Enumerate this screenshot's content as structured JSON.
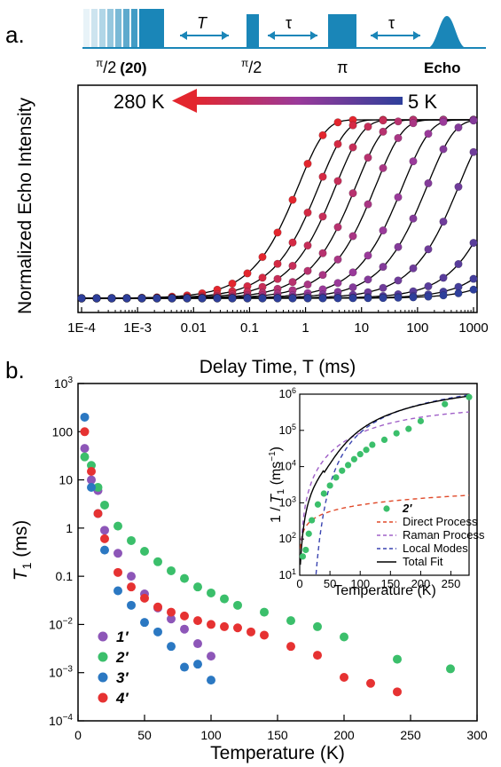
{
  "colors": {
    "pulse": "#1a86b8",
    "hot": "#e3262e",
    "cold": "#2e3f9b",
    "green": "#3bbf6b",
    "purple": "#8d56b8",
    "blue": "#2b78c2",
    "red": "#e63232",
    "direct": "#e04a2a",
    "raman": "#a060c8",
    "local": "#3a44b0",
    "total": "#000000"
  },
  "panel_a": {
    "label": "a.",
    "sequence": {
      "pulse1": "π/2 (20)",
      "pulse1_pre": "π",
      "pulse1_sub": "/2",
      "pulse1_post": "(20)",
      "pulse2_pre": "π",
      "pulse2_sub": "/2",
      "delay1": "T",
      "delay2": "τ",
      "pulse3": "π",
      "delay3": "τ",
      "echo": "Echo"
    },
    "arrow_left": "280 K",
    "arrow_right": "5 K"
  },
  "panel_b": {
    "label": "b."
  },
  "chart_data": [
    {
      "type": "scatter",
      "title": "",
      "xlabel": "Delay Time, T (ms)",
      "ylabel": "Normalized Echo Intensity",
      "xscale": "log",
      "xlim": [
        0.0001,
        1000
      ],
      "xticks": [
        "1E-4",
        "1E-3",
        "0.01",
        "0.1",
        "1",
        "10",
        "100",
        "1000"
      ],
      "yticks": [],
      "fit_lines": "black curves through each series",
      "series_T1_ms": [
        0.75,
        1.75,
        3.5,
        8,
        18,
        55,
        150,
        550,
        3000,
        11000,
        28000
      ]
    },
    {
      "type": "scatter",
      "xlabel": "Temperature (K)",
      "ylabel": "T1 (ms)",
      "yscale": "log",
      "xlim": [
        0,
        300
      ],
      "ylim": [
        0.0001,
        1000
      ],
      "xticks": [
        "0",
        "50",
        "100",
        "150",
        "200",
        "250",
        "300"
      ],
      "yticks": [
        "10-4",
        "10-3",
        "10-2",
        "0.1",
        "1",
        "10",
        "100",
        "103"
      ],
      "legend": "bottom-left",
      "series": [
        {
          "name": "1′",
          "color": "purple",
          "points": [
            [
              5,
              45
            ],
            [
              10,
              10
            ],
            [
              15,
              6
            ],
            [
              20,
              0.9
            ],
            [
              30,
              0.3
            ],
            [
              40,
              0.1
            ],
            [
              50,
              0.043
            ],
            [
              60,
              0.022
            ],
            [
              70,
              0.013
            ],
            [
              80,
              0.008
            ],
            [
              90,
              0.004
            ],
            [
              100,
              0.0022
            ]
          ]
        },
        {
          "name": "2′",
          "color": "green",
          "points": [
            [
              5,
              30
            ],
            [
              10,
              20
            ],
            [
              15,
              7
            ],
            [
              20,
              3
            ],
            [
              30,
              1.1
            ],
            [
              40,
              0.55
            ],
            [
              50,
              0.33
            ],
            [
              60,
              0.2
            ],
            [
              70,
              0.13
            ],
            [
              80,
              0.09
            ],
            [
              90,
              0.06
            ],
            [
              100,
              0.045
            ],
            [
              110,
              0.034
            ],
            [
              120,
              0.025
            ],
            [
              140,
              0.018
            ],
            [
              160,
              0.012
            ],
            [
              180,
              0.009
            ],
            [
              200,
              0.0055
            ],
            [
              240,
              0.0019
            ],
            [
              280,
              0.0012
            ]
          ]
        },
        {
          "name": "3′",
          "color": "blue",
          "points": [
            [
              5,
              200
            ],
            [
              10,
              7
            ],
            [
              15,
              2
            ],
            [
              20,
              0.35
            ],
            [
              30,
              0.05
            ],
            [
              40,
              0.025
            ],
            [
              50,
              0.011
            ],
            [
              60,
              0.007
            ],
            [
              70,
              0.0035
            ],
            [
              80,
              0.0013
            ],
            [
              90,
              0.0015
            ],
            [
              100,
              0.0007
            ]
          ]
        },
        {
          "name": "4′",
          "color": "red",
          "points": [
            [
              5,
              100
            ],
            [
              10,
              15
            ],
            [
              15,
              2
            ],
            [
              20,
              0.6
            ],
            [
              30,
              0.12
            ],
            [
              40,
              0.06
            ],
            [
              50,
              0.035
            ],
            [
              60,
              0.023
            ],
            [
              70,
              0.018
            ],
            [
              80,
              0.015
            ],
            [
              90,
              0.012
            ],
            [
              100,
              0.01
            ],
            [
              110,
              0.009
            ],
            [
              120,
              0.0085
            ],
            [
              130,
              0.007
            ],
            [
              140,
              0.006
            ],
            [
              160,
              0.0035
            ],
            [
              180,
              0.0023
            ],
            [
              200,
              0.0008
            ],
            [
              220,
              0.0006
            ],
            [
              240,
              0.0004
            ]
          ]
        }
      ]
    },
    {
      "type": "line",
      "inset": true,
      "xlabel": "Temperature (K)",
      "ylabel": "1 / T1 (ms-1)",
      "yscale": "log",
      "xlim": [
        0,
        280
      ],
      "ylim": [
        10,
        1000000
      ],
      "xticks": [
        "0",
        "50",
        "100",
        "150",
        "200",
        "250"
      ],
      "yticks": [
        "101",
        "102",
        "103",
        "104",
        "105",
        "106"
      ],
      "legend_entries": [
        "2′",
        "Direct Process",
        "Raman Process",
        "Local Modes",
        "Total Fit"
      ],
      "data_series": {
        "name": "2′",
        "points": [
          [
            5,
            33
          ],
          [
            10,
            50
          ],
          [
            15,
            140
          ],
          [
            20,
            330
          ],
          [
            30,
            900
          ],
          [
            40,
            1800
          ],
          [
            50,
            3000
          ],
          [
            60,
            5000
          ],
          [
            70,
            7700
          ],
          [
            80,
            11000
          ],
          [
            90,
            16000
          ],
          [
            100,
            22000
          ],
          [
            110,
            29000
          ],
          [
            120,
            40000
          ],
          [
            140,
            55000
          ],
          [
            160,
            83000
          ],
          [
            180,
            110000
          ],
          [
            200,
            180000
          ],
          [
            240,
            530000
          ],
          [
            280,
            830000
          ]
        ]
      }
    }
  ]
}
